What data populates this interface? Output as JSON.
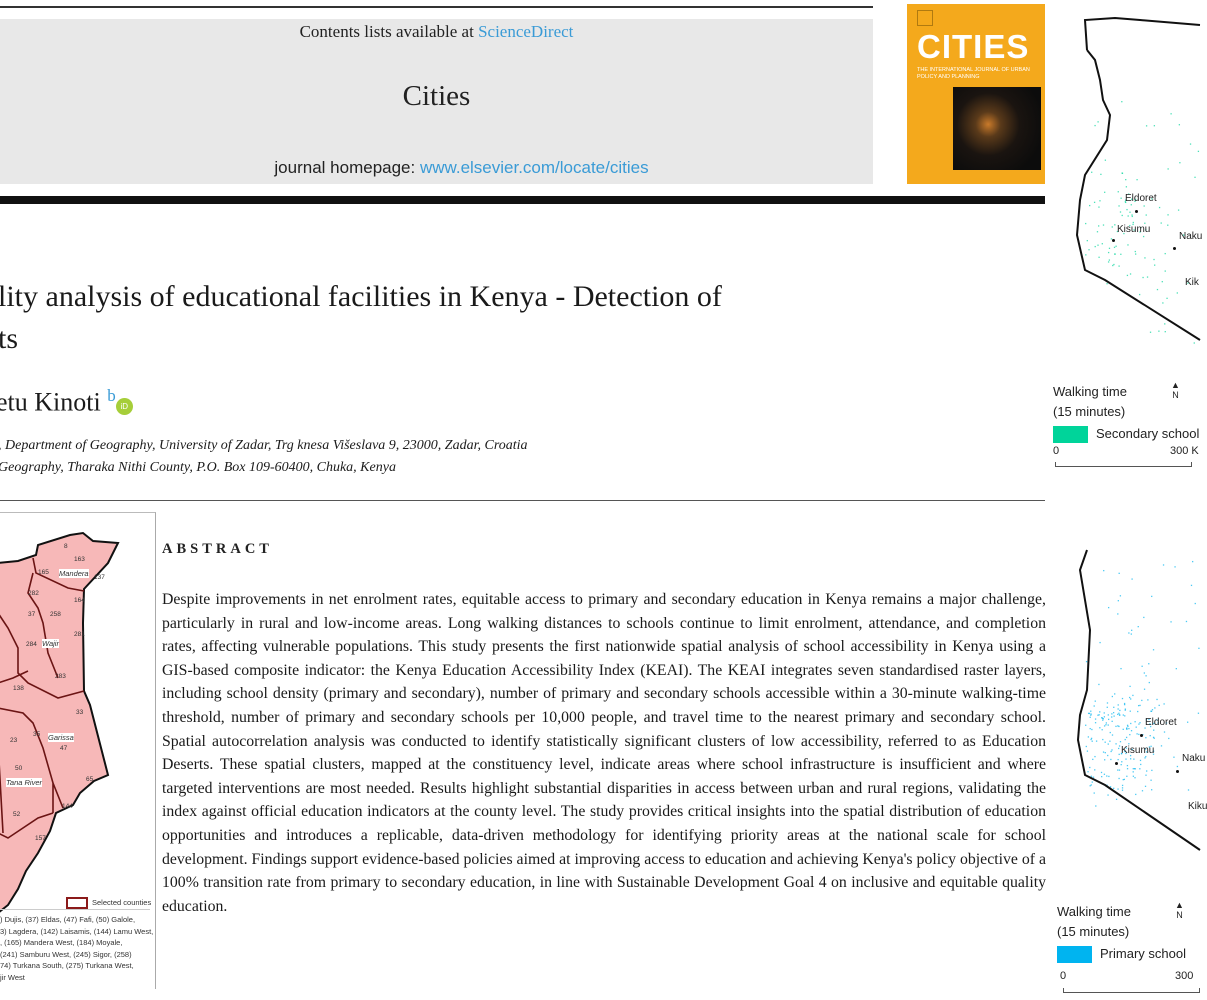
{
  "header": {
    "contents_prefix": "Contents lists available at ",
    "contents_link": "ScienceDirect",
    "journal_name": "Cities",
    "homepage_prefix": "journal homepage: ",
    "homepage_link": "www.elsevier.com/locate/cities",
    "link_color": "#3a9bd6"
  },
  "cover": {
    "title": "CITIES",
    "subtitle": "THE INTERNATIONAL JOURNAL OF URBAN POLICY AND PLANNING",
    "color": "#f4a91c"
  },
  "article": {
    "title_line1": "lity analysis of educational facilities in Kenya - Detection of",
    "title_line2": "ts",
    "authors": "etu Kinoti",
    "author_sup": "b",
    "orcid_icon": "orcid-icon",
    "affiliation_1": ", Department of Geography, University of Zadar, Trg knesa Višeslava 9, 23000, Zadar, Croatia",
    "affiliation_2": "Geography, Tharaka Nithi County, P.O. Box 109-60400, Chuka, Kenya"
  },
  "left_map": {
    "fill_color": "#f7b8b8",
    "border_color": "#8b1a1a",
    "labels": [
      "8",
      "163",
      "165",
      "Mandera",
      "137",
      "282",
      "164",
      "37",
      "258",
      "281",
      "Wajir",
      "284",
      "283",
      "138",
      "33",
      "35",
      "23",
      "Garissa",
      "47",
      "50",
      "Tana River",
      "65",
      "144",
      "52",
      "157"
    ],
    "legend": "Selected counties",
    "caption_lines": [
      ") Dujis, (37) Eldas, (47) Fafi, (50) Galole,",
      "3) Lagdera, (142) Laisamis, (144) Lamu West,",
      ", (165) Mandera West, (184) Moyale,",
      "(241) Samburu West, (245) Sigor, (258)",
      "74) Turkana South, (275) Turkana West,",
      "jir West"
    ]
  },
  "abstract": {
    "heading": "ABSTRACT",
    "text": "Despite improvements in net enrolment rates, equitable access to primary and secondary education in Kenya remains a major challenge, particularly in rural and low-income areas. Long walking distances to schools continue to limit enrolment, attendance, and completion rates, affecting vulnerable populations. This study presents the first nationwide spatial analysis of school accessibility in Kenya using a GIS-based composite indicator: the Kenya Education Accessibility Index (KEAI). The KEAI integrates seven standardised raster layers, including school density (primary and secondary), number of primary and secondary schools accessible within a 30-minute walking-time threshold, number of primary and secondary schools per 10,000 people, and travel time to the nearest primary and secondary school. Spatial autocorrelation analysis was conducted to identify statistically significant clusters of low accessibility, referred to as Education Deserts. These spatial clusters, mapped at the constituency level, indicate areas where school infrastructure is insufficient and where targeted interventions are most needed. Results highlight substantial disparities in access between urban and rural regions, validating the index against official education indicators at the county level. The study provides critical insights into the spatial distribution of education opportunities and introduces a replicable, data-driven methodology for identifying priority areas at the national scale for school development. Findings support evidence-based policies aimed at improving access to education and achieving Kenya's policy objective of a 100% transition rate from primary to secondary education, in line with Sustainable Development Goal 4 on inclusive and equitable quality education."
  },
  "right_maps": [
    {
      "cities": [
        "Eldoret",
        "Kisumu",
        "Naku",
        "Kik"
      ],
      "legend_title_1": "Walking time",
      "legend_title_2": "(15 minutes)",
      "north": "N",
      "legend_item": "Secondary school",
      "color": "#00d49a",
      "scale_start": "0",
      "scale_end": "300 K"
    },
    {
      "cities": [
        "Eldoret",
        "Kisumu",
        "Naku",
        "Kiku"
      ],
      "legend_title_1": "Walking time",
      "legend_title_2": "(15 minutes)",
      "north": "N",
      "legend_item": "Primary school",
      "color": "#00b4f0",
      "scale_start": "0",
      "scale_end": "300"
    }
  ]
}
